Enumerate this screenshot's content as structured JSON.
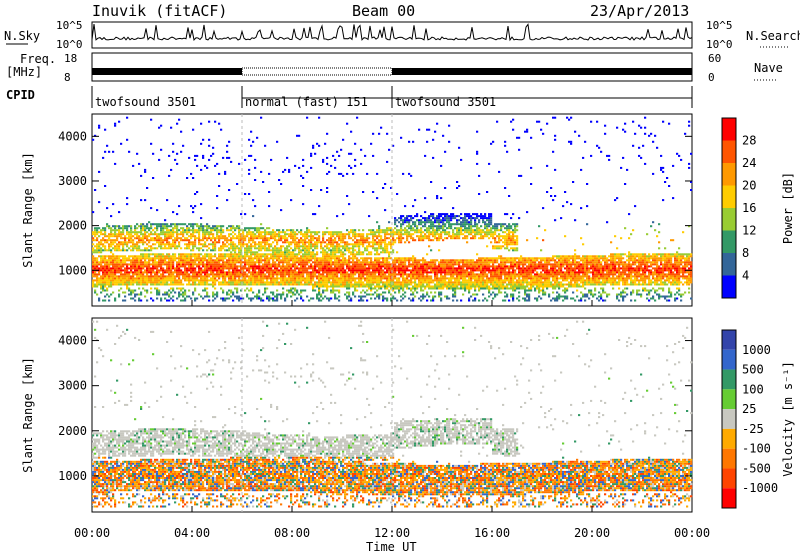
{
  "header": {
    "station": "Inuvik (fitACF)",
    "beam": "Beam 00",
    "date": "23/Apr/2013"
  },
  "top_labels": {
    "nsky": "N.Sky",
    "nsky_top": "10^5",
    "nsky_bot": "10^0",
    "nsearch": "N.Search",
    "nsearch_top": "10^5",
    "nsearch_bot": "10^0",
    "freq": "Freq.",
    "freq_unit": "[MHz]",
    "freq_top": "18",
    "freq_bot": "8",
    "nave": "Nave",
    "nave_top": "60",
    "nave_bot": "0",
    "cpid": "CPID"
  },
  "cpid_segments": [
    {
      "label": "twofsound 3501",
      "start": 0,
      "end": 6
    },
    {
      "label": "normal (fast) 151",
      "start": 6,
      "end": 12
    },
    {
      "label": "twofsound 3501",
      "start": 12,
      "end": 24
    }
  ],
  "chart_data": [
    {
      "type": "heatmap",
      "panel": "power",
      "ylabel": "Slant Range [km]",
      "yticks": [
        "1000",
        "2000",
        "3000",
        "4000"
      ],
      "ylim": [
        200,
        4500
      ],
      "xlim": [
        0,
        24
      ],
      "colorbar_label": "Power [dB]",
      "colorbar_ticks": [
        "28",
        "24",
        "20",
        "16",
        "12",
        "8",
        "4"
      ],
      "colors": [
        "#ff0000",
        "#ff5500",
        "#ff9900",
        "#ffcc00",
        "#99cc33",
        "#339966",
        "#336699",
        "#0000ff"
      ]
    },
    {
      "type": "heatmap",
      "panel": "velocity",
      "ylabel": "Slant Range [km]",
      "yticks": [
        "1000",
        "2000",
        "3000",
        "4000"
      ],
      "ylim": [
        200,
        4500
      ],
      "xlim": [
        0,
        24
      ],
      "xlabel": "Time UT",
      "xticks": [
        "00:00",
        "04:00",
        "08:00",
        "12:00",
        "16:00",
        "20:00",
        "00:00"
      ],
      "colorbar_label": "Velocity [m s⁻¹]",
      "colorbar_ticks": [
        "1000",
        "500",
        "100",
        "25",
        "-25",
        "-100",
        "-500",
        "-1000"
      ],
      "colors": [
        "#3344aa",
        "#3366cc",
        "#339966",
        "#66cc33",
        "#c8c8c0",
        "#ffaa00",
        "#ff7700",
        "#ff4400",
        "#ff0000"
      ]
    }
  ]
}
